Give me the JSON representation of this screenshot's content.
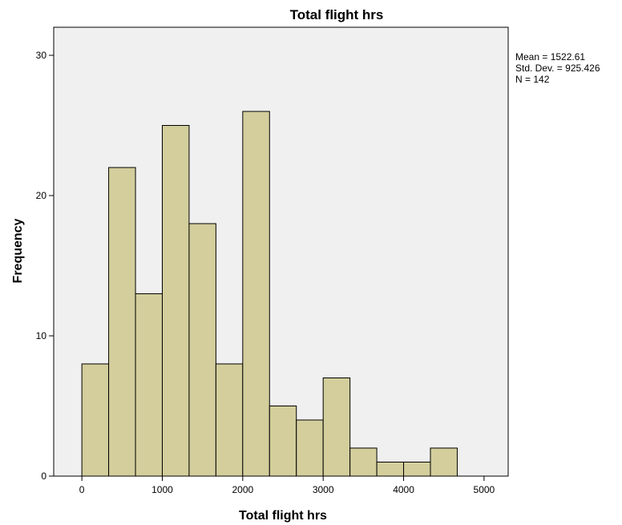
{
  "chart_data": {
    "type": "bar",
    "title": "Total flight hrs",
    "xlabel": "Total flight hrs",
    "ylabel": "Frequency",
    "xlim": [
      -350,
      5300
    ],
    "ylim": [
      0,
      32
    ],
    "bin_width": 333.33,
    "bin_start": 0,
    "values": [
      8,
      22,
      13,
      25,
      18,
      8,
      26,
      5,
      4,
      7,
      2,
      1,
      1,
      2
    ],
    "x_ticks": [
      0,
      1000,
      2000,
      3000,
      4000,
      5000
    ],
    "y_ticks": [
      0,
      10,
      20,
      30
    ],
    "grid": false,
    "legend": "none",
    "bar_color": "#d3ce9c",
    "background_color": "#f0f0f0"
  },
  "stats": {
    "mean": "Mean = 1522.61",
    "std_dev": "Std. Dev. = 925.426",
    "n": "N = 142"
  }
}
